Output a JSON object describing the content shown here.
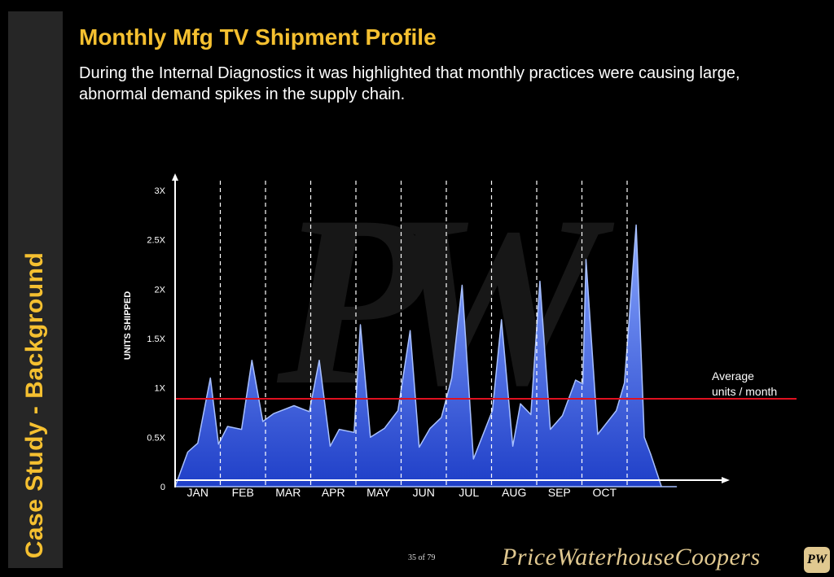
{
  "sidebar": {
    "label": "Case Study - Background"
  },
  "header": {
    "title": "Monthly Mfg TV Shipment Profile",
    "subtitle": "During the Internal Diagnostics it was highlighted that monthly practices were causing large, abnormal demand spikes in the supply chain."
  },
  "footer": {
    "page": "35 of 79",
    "logo": "PriceWaterhouseCoopers",
    "badge": "PW"
  },
  "colors": {
    "accent": "#f5c030",
    "area_top": "#8aa8ff",
    "area_bottom": "#1f3fc8",
    "average_line": "#e01020"
  },
  "chart_data": {
    "type": "area",
    "ylabel": "UNITS SHIPPED",
    "ylim": [
      0,
      3
    ],
    "y_ticks": [
      "0",
      "0.5X",
      "1X",
      "1.5X",
      "2X",
      "2.5X",
      "3X"
    ],
    "categories": [
      "JAN",
      "FEB",
      "MAR",
      "APR",
      "MAY",
      "JUN",
      "JUL",
      "AUG",
      "SEP",
      "OCT"
    ],
    "month_boundaries_x": [
      1,
      2,
      3,
      4,
      5,
      6,
      7,
      8,
      9,
      10
    ],
    "x_range": [
      0,
      11.1
    ],
    "series": [
      {
        "x": [
          0,
          0.28,
          0.5,
          0.78,
          0.96,
          1.16,
          1.47,
          1.7,
          1.94,
          2.18,
          2.63,
          2.97,
          3.19,
          3.43,
          3.63,
          3.96,
          4.1,
          4.32,
          4.63,
          4.93,
          5.2,
          5.4,
          5.64,
          5.89,
          6.12,
          6.35,
          6.6,
          7.02,
          7.22,
          7.47,
          7.64,
          7.87,
          8.07,
          8.3,
          8.57,
          8.86,
          9.02,
          9.09,
          9.35,
          9.76,
          9.94,
          10.2,
          10.38,
          10.52,
          10.76,
          11.09
        ],
        "values": [
          0,
          0.35,
          0.44,
          1.1,
          0.43,
          0.61,
          0.58,
          1.28,
          0.66,
          0.74,
          0.82,
          0.76,
          1.28,
          0.41,
          0.58,
          0.55,
          1.64,
          0.5,
          0.59,
          0.77,
          1.58,
          0.4,
          0.59,
          0.7,
          1.1,
          2.04,
          0.28,
          0.77,
          1.69,
          0.41,
          0.84,
          0.73,
          2.08,
          0.58,
          0.72,
          1.08,
          1.04,
          2.3,
          0.53,
          0.77,
          1.05,
          2.65,
          0.5,
          0.33,
          0,
          0
        ]
      }
    ],
    "average": {
      "value": 0.89,
      "label_line1": "Average",
      "label_line2": "units / month"
    },
    "grid": false,
    "legend": "none"
  }
}
